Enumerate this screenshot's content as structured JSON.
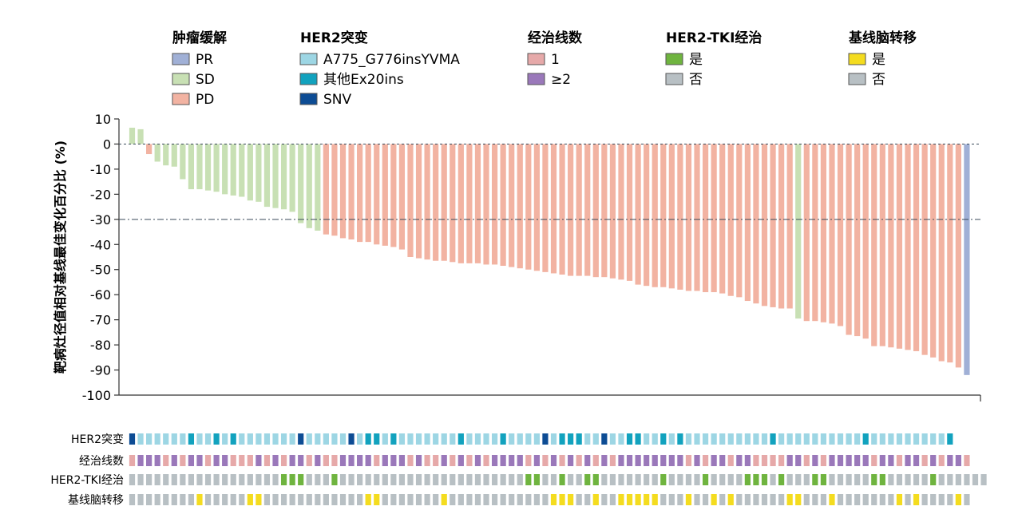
{
  "chart_data": {
    "type": "bar",
    "ylabel": "靶病灶径值相对基线最佳变化百分比 (%)",
    "ylim": [
      -100,
      10
    ],
    "yticks": [
      10,
      0,
      -10,
      -20,
      -30,
      -40,
      -50,
      -60,
      -70,
      -80,
      -90,
      -100
    ],
    "reference_lines": [
      0,
      -30
    ],
    "legend_groups": [
      {
        "title": "肿瘤缓解",
        "items": [
          {
            "key": "PR",
            "label": "PR",
            "color": "#a0b0d6"
          },
          {
            "key": "SD",
            "label": "SD",
            "color": "#c8e0b4"
          },
          {
            "key": "PD",
            "label": "PD",
            "color": "#f2b3a2"
          }
        ]
      },
      {
        "title": "HER2突变",
        "items": [
          {
            "key": "A",
            "label": "A775_G776insYVMA",
            "color": "#9dd6e4"
          },
          {
            "key": "E",
            "label": "其他Ex20ins",
            "color": "#12a2be"
          },
          {
            "key": "S",
            "label": "SNV",
            "color": "#0d4c94"
          }
        ]
      },
      {
        "title": "经治线数",
        "items": [
          {
            "key": "1",
            "label": "1",
            "color": "#e6a9a9"
          },
          {
            "key": "2",
            "label": "≥2",
            "color": "#9a78ba"
          }
        ]
      },
      {
        "title": "HER2-TKI经治",
        "items": [
          {
            "key": "Y",
            "label": "是",
            "color": "#6fb43f"
          },
          {
            "key": "N",
            "label": "否",
            "color": "#b8c0c4"
          }
        ]
      },
      {
        "title": "基线脑转移",
        "items": [
          {
            "key": "Y",
            "label": "是",
            "color": "#f4dc1f"
          },
          {
            "key": "N",
            "label": "否",
            "color": "#b8c0c4"
          }
        ]
      }
    ],
    "values": [
      6.5,
      5.9,
      -4,
      -7,
      -8.5,
      -9,
      -14,
      -18,
      -18,
      -18.5,
      -19,
      -20,
      -20.5,
      -21,
      -22.5,
      -23,
      -25,
      -25.5,
      -26,
      -27,
      -31.5,
      -33.5,
      -34.5,
      -36,
      -36.5,
      -37.5,
      -38,
      -39,
      -39,
      -40,
      -40.5,
      -41,
      -42,
      -45,
      -45.5,
      -46,
      -46.5,
      -46.5,
      -47,
      -47.5,
      -47.5,
      -47.5,
      -48,
      -48,
      -48.5,
      -49,
      -49.5,
      -50,
      -50.5,
      -51,
      -51.5,
      -52,
      -52.5,
      -52.5,
      -52.5,
      -53,
      -53,
      -53.5,
      -54,
      -54.5,
      -56,
      -56.5,
      -57,
      -57,
      -57.5,
      -58,
      -58.5,
      -58.5,
      -59,
      -59,
      -59.5,
      -60.5,
      -61,
      -62.5,
      -63.5,
      -64.5,
      -65,
      -65.5,
      -65.5,
      -69.5,
      -70.5,
      -70.5,
      -71,
      -71.5,
      -72.5,
      -76,
      -76.5,
      -77.5,
      -80.5,
      -80.5,
      -81,
      -81.5,
      -82,
      -82.5,
      -84,
      -85,
      -86.5,
      -87,
      -89,
      -92
    ],
    "response": "SSPSSSSSSSSSSSSSSSSSSSSPPPPPPPPPPPPPPPPPPPPPPPPPPPPPPPPPPPPPPPPPPPPPPPPPPPPPPPPSPPPPPPPPPPPPPPPPPPP",
    "tracks": [
      {
        "label": "HER2突变",
        "legend_index": 1,
        "codes": "SAAAAAAEAAEAEAAAAAAASAAAAASAEEAEAAAAAAAEAAAAEAAAASAEEEAASAAEEAAEAEAAAAAAAAAAEAAAAAAAAAAEAAAAAAAAAE"
      },
      {
        "label": "经治线数",
        "legend_index": 2,
        "codes": "1222121221221112121221211222212221211212121222212121212121222222221212212211112212122222122122121221"
      },
      {
        "label": "HER2-TKI经治",
        "legend_index": 3,
        "codes": "NNNNNNNNNNNNNNNNNNYYYNNNYNNNNNNNNNNNNNNNNNNNNNNYYNNYNNYYNNNNNNNYNNNNYNNNNYYYNYNNNYYNNNNNYYNNNNNYNNNNNN"
      },
      {
        "label": "基线脑转移",
        "legend_index": 4,
        "codes": "NNNNNNNNYNNNNNYYNNNNNNNNNNNNYYNNNNNNNYNNNNNNNNNNNNYYYNNYNNYYYYYNNNYNNYNYNNNNNNYYNNNYNNNNNNNYNYNNNNYN"
      }
    ]
  }
}
